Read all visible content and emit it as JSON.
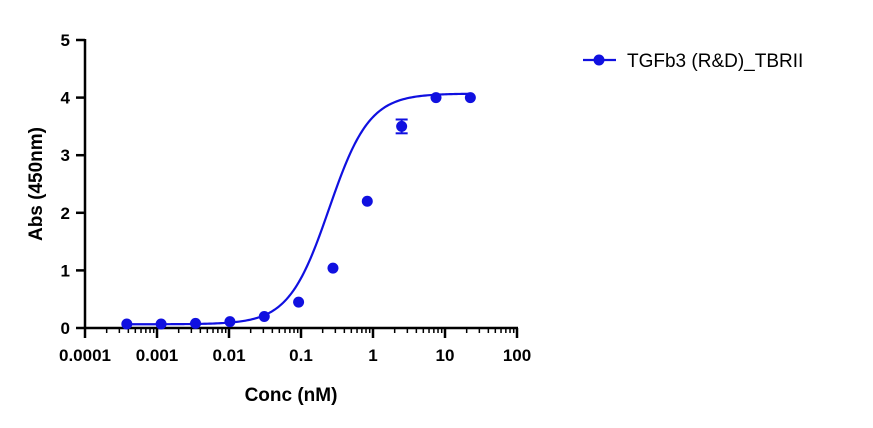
{
  "chart_data": {
    "type": "scatter",
    "x_scale": "log",
    "xlabel": "Conc (nM)",
    "ylabel": "Abs (450nm)",
    "xlim": [
      0.0001,
      100
    ],
    "ylim": [
      0,
      5
    ],
    "x_tick_labels": [
      "0.0001",
      "0.001",
      "0.01",
      "0.1",
      "1",
      "10",
      "100"
    ],
    "y_tick_labels": [
      "0",
      "1",
      "2",
      "3",
      "4",
      "5"
    ],
    "grid": false,
    "legend_position": "top-right",
    "series": [
      {
        "name": "TGFb3 (R&D)_TBRII",
        "color": "#1010e0",
        "marker": "circle",
        "fit": "four-parameter-logistic",
        "x": [
          0.000381,
          0.00114,
          0.00343,
          0.0103,
          0.0309,
          0.0926,
          0.278,
          0.833,
          2.5,
          7.5,
          22.5
        ],
        "y": [
          0.07,
          0.07,
          0.08,
          0.11,
          0.2,
          0.45,
          1.04,
          2.2,
          3.5,
          4.0,
          4.0
        ],
        "error": [
          0,
          0,
          0,
          0,
          0,
          0,
          0,
          0,
          0.12,
          0,
          0
        ]
      }
    ]
  }
}
